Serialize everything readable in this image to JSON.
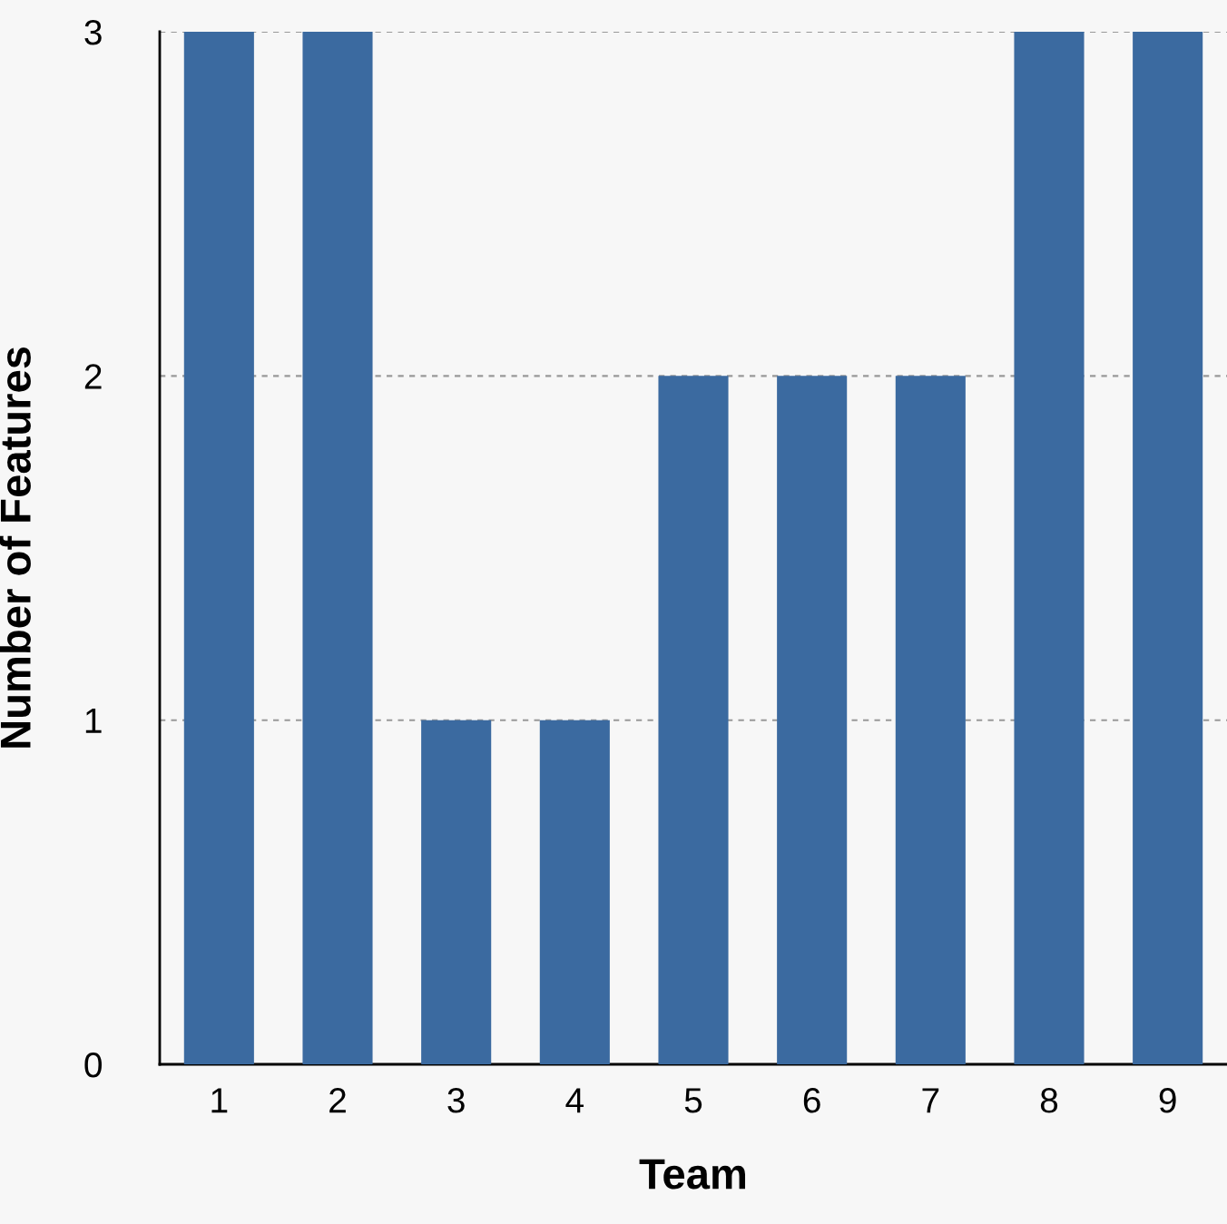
{
  "chart_data": {
    "type": "bar",
    "xlabel": "Team",
    "ylabel": "Number of Features",
    "categories": [
      "1",
      "2",
      "3",
      "4",
      "5",
      "6",
      "7",
      "8",
      "9"
    ],
    "values": [
      3,
      3,
      1,
      1,
      2,
      2,
      2,
      3,
      3
    ],
    "color": "#3b6aa0",
    "ylim": [
      0,
      3
    ],
    "yticks": [
      0,
      1,
      2,
      3
    ],
    "grid": "y"
  }
}
